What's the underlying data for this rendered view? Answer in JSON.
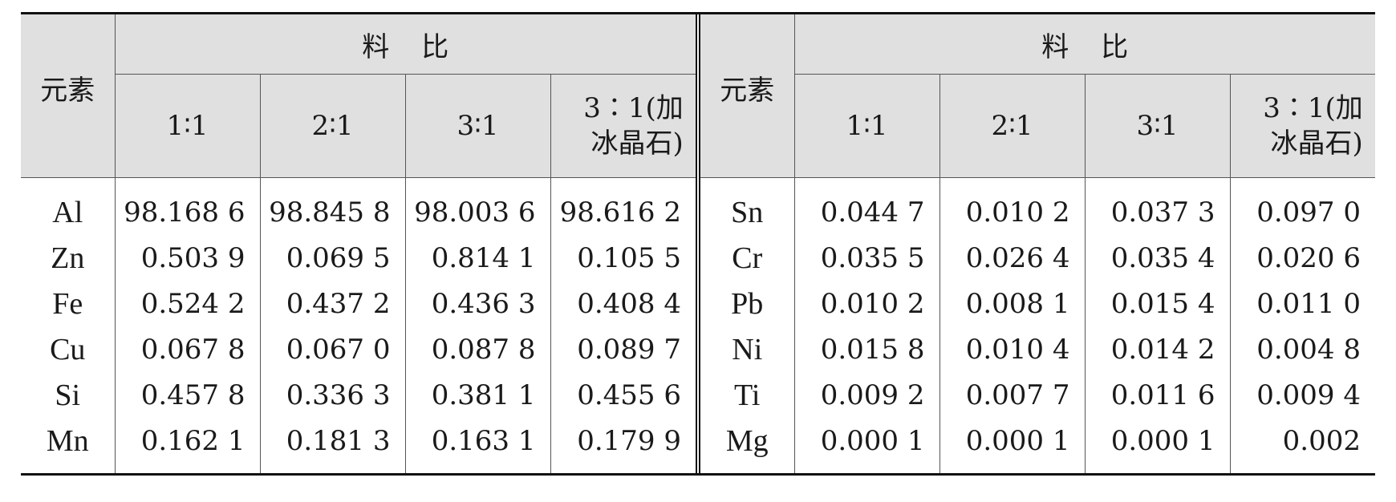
{
  "table": {
    "element_header": "元素",
    "ratio_header": "料比",
    "ratios": [
      "1∶1",
      "2∶1",
      "3∶1",
      "3∶1(加冰晶石)"
    ],
    "left_rows": [
      {
        "element": "Al",
        "values": [
          "98.168 6",
          "98.845 8",
          "98.003 6",
          "98.616 2"
        ]
      },
      {
        "element": "Zn",
        "values": [
          "0.503 9",
          "0.069 5",
          "0.814 1",
          "0.105 5"
        ]
      },
      {
        "element": "Fe",
        "values": [
          "0.524 2",
          "0.437 2",
          "0.436 3",
          "0.408 4"
        ]
      },
      {
        "element": "Cu",
        "values": [
          "0.067 8",
          "0.067 0",
          "0.087 8",
          "0.089 7"
        ]
      },
      {
        "element": "Si",
        "values": [
          "0.457 8",
          "0.336 3",
          "0.381 1",
          "0.455 6"
        ]
      },
      {
        "element": "Mn",
        "values": [
          "0.162 1",
          "0.181 3",
          "0.163 1",
          "0.179 9"
        ]
      }
    ],
    "right_rows": [
      {
        "element": "Sn",
        "values": [
          "0.044 7",
          "0.010 2",
          "0.037 3",
          "0.097 0"
        ]
      },
      {
        "element": "Cr",
        "values": [
          "0.035 5",
          "0.026 4",
          "0.035 4",
          "0.020 6"
        ]
      },
      {
        "element": "Pb",
        "values": [
          "0.010 2",
          "0.008 1",
          "0.015 4",
          "0.011 0"
        ]
      },
      {
        "element": "Ni",
        "values": [
          "0.015 8",
          "0.010 4",
          "0.014 2",
          "0.004 8"
        ]
      },
      {
        "element": "Ti",
        "values": [
          "0.009 2",
          "0.007 7",
          "0.011 6",
          "0.009 4"
        ]
      },
      {
        "element": "Mg",
        "values": [
          "0.000 1",
          "0.000 1",
          "0.000 1",
          "0.002"
        ]
      }
    ]
  }
}
